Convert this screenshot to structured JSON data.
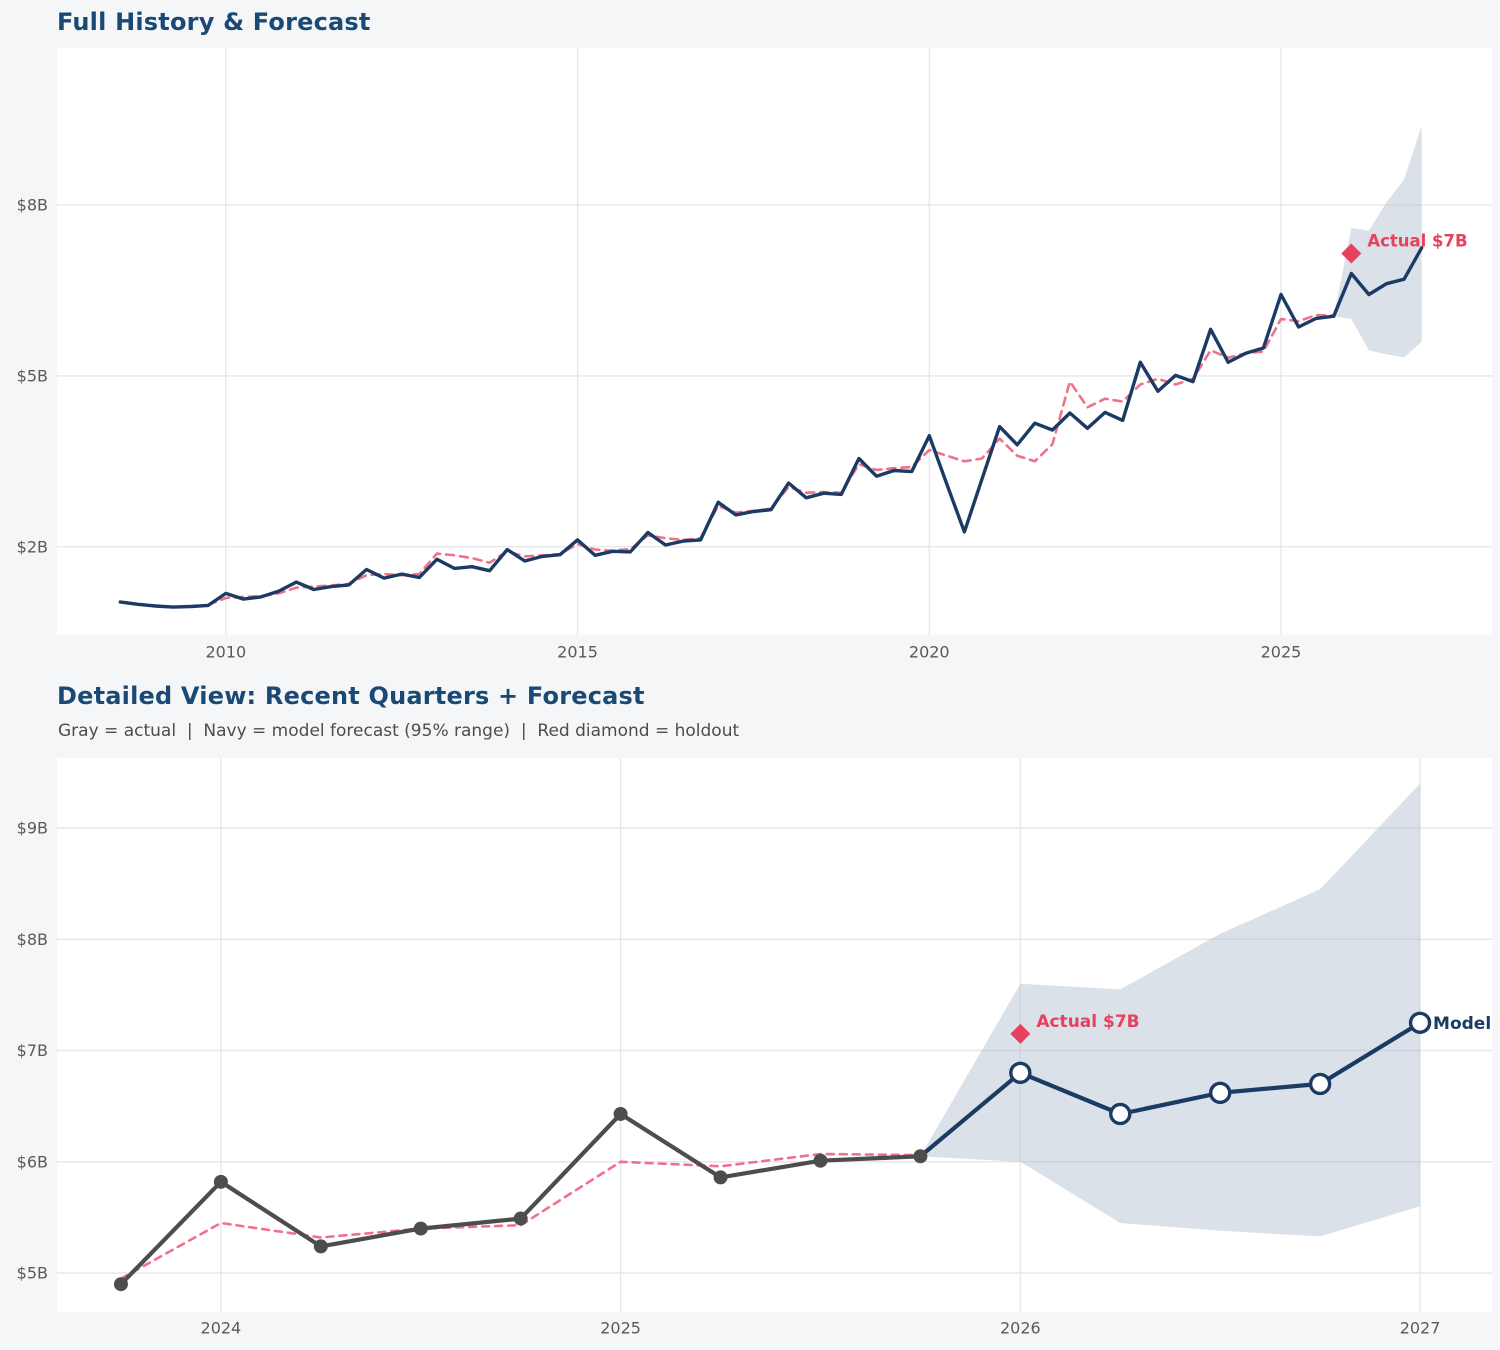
{
  "palette": {
    "page_bg": "#f5f6f8",
    "plot_bg": "#ffffff",
    "grid": "#e4e6e8",
    "navy": "#1b3a64",
    "pink": "#f0718a",
    "crimson": "#e8415f",
    "gray_series": "#4d4d4d",
    "band": "#aebccd",
    "title": "#1b4975",
    "tick": "#5a5a5a",
    "subtitle_text": "#4d4d4d",
    "marker_fill": "#ffffff"
  },
  "chart_data": [
    {
      "type": "line",
      "title": "Full History & Forecast",
      "x_axis": {
        "ticks": [
          2010,
          2015,
          2020,
          2025
        ],
        "tick_labels": [
          "2010",
          "2015",
          "2020",
          "2025"
        ],
        "lim": [
          2007.6,
          2028.0
        ],
        "unit": "year (quarterly points)"
      },
      "y_axis": {
        "ticks": [
          2,
          5,
          8
        ],
        "tick_labels": [
          "$2B",
          "$5B",
          "$8B"
        ],
        "lim": [
          0.45,
          10.76
        ]
      },
      "grid": true,
      "legend": "none",
      "series": [
        {
          "name": "actual-history",
          "color": "navy",
          "style": "solid",
          "marker": "none",
          "x_start": 2008.5,
          "x_step": 0.25,
          "values": [
            1.03,
            0.99,
            0.96,
            0.94,
            0.95,
            0.97,
            1.18,
            1.08,
            1.12,
            1.22,
            1.38,
            1.25,
            1.3,
            1.33,
            1.6,
            1.45,
            1.52,
            1.46,
            1.78,
            1.62,
            1.65,
            1.58,
            1.95,
            1.75,
            1.83,
            1.86,
            2.12,
            1.85,
            1.92,
            1.91,
            2.25,
            2.03,
            2.1,
            2.12,
            2.78,
            2.56,
            2.62,
            2.65,
            3.12,
            2.86,
            2.94,
            2.92,
            3.55,
            3.24,
            3.34,
            3.32,
            3.95,
            3.1,
            2.26,
            3.19,
            4.11,
            3.79,
            4.17,
            4.05,
            4.35,
            4.08,
            4.36,
            4.22,
            5.24,
            4.73,
            5.01,
            4.9,
            5.82,
            5.24,
            5.4,
            5.49,
            6.43,
            5.86,
            6.01,
            6.05
          ]
        },
        {
          "name": "model-fit",
          "color": "pink",
          "style": "dashed",
          "marker": "none",
          "x_start": 2009.75,
          "x_step": 0.25,
          "values": [
            0.98,
            1.1,
            1.12,
            1.13,
            1.18,
            1.28,
            1.3,
            1.32,
            1.35,
            1.5,
            1.52,
            1.5,
            1.52,
            1.88,
            1.85,
            1.8,
            1.72,
            1.92,
            1.83,
            1.85,
            1.87,
            2.05,
            1.95,
            1.93,
            1.96,
            2.2,
            2.15,
            2.12,
            2.15,
            2.72,
            2.6,
            2.63,
            2.67,
            3.05,
            2.95,
            2.96,
            2.95,
            3.45,
            3.35,
            3.38,
            3.4,
            3.7,
            3.6,
            3.5,
            3.55,
            3.9,
            3.6,
            3.5,
            3.8,
            4.9,
            4.45,
            4.6,
            4.55,
            4.85,
            4.95,
            4.85,
            4.95,
            5.45,
            5.32,
            5.4,
            5.43,
            6.0,
            5.96,
            6.07,
            6.06
          ]
        },
        {
          "name": "model-forecast",
          "color": "navy",
          "style": "solid",
          "marker": "none",
          "x_start": 2025.75,
          "x_step": 0.25,
          "values": [
            6.05,
            6.8,
            6.43,
            6.62,
            6.7,
            7.25
          ]
        }
      ],
      "confidence_band": {
        "level": "95%",
        "x_start": 2025.75,
        "x_step": 0.25,
        "upper": [
          6.05,
          7.6,
          7.55,
          8.05,
          8.45,
          9.4
        ],
        "lower": [
          6.05,
          6.0,
          5.45,
          5.38,
          5.33,
          5.6
        ]
      },
      "annotation": {
        "label": "Actual $7B",
        "x": 2026.0,
        "y": 7.15
      }
    },
    {
      "type": "line",
      "title": "Detailed View: Recent Quarters + Forecast",
      "subtitle": "Gray = actual  |  Navy = model forecast (95% range)  |  Red diamond = holdout",
      "x_axis": {
        "ticks": [
          2024,
          2025,
          2026,
          2027
        ],
        "tick_labels": [
          "2024",
          "2025",
          "2026",
          "2027"
        ],
        "lim": [
          2023.59,
          2027.18
        ],
        "unit": "year (quarterly points)"
      },
      "y_axis": {
        "ticks": [
          5,
          6,
          7,
          8,
          9
        ],
        "tick_labels": [
          "$5B",
          "$6B",
          "$7B",
          "$8B",
          "$9B"
        ],
        "lim": [
          4.65,
          9.63
        ]
      },
      "grid": true,
      "legend": "in-subtitle",
      "series": [
        {
          "name": "actual-quarters",
          "color": "gray_series",
          "style": "solid",
          "marker": "filled-circle",
          "x_start": 2023.75,
          "x_step": 0.25,
          "values": [
            4.9,
            5.82,
            5.24,
            5.4,
            5.49,
            6.43,
            5.86,
            6.01,
            6.05
          ]
        },
        {
          "name": "model-fit",
          "color": "pink",
          "style": "dashed",
          "marker": "none",
          "x_start": 2023.75,
          "x_step": 0.25,
          "values": [
            4.95,
            5.45,
            5.32,
            5.4,
            5.43,
            6.0,
            5.96,
            6.07,
            6.06
          ]
        },
        {
          "name": "model-forecast",
          "color": "navy",
          "style": "solid",
          "marker": "open-circle",
          "marker_skip_first": true,
          "x_start": 2025.75,
          "x_step": 0.25,
          "values": [
            6.05,
            6.8,
            6.43,
            6.62,
            6.7,
            7.25
          ]
        }
      ],
      "confidence_band": {
        "level": "95%",
        "x_start": 2025.75,
        "x_step": 0.25,
        "upper": [
          6.05,
          7.6,
          7.55,
          8.05,
          8.45,
          9.4
        ],
        "lower": [
          6.05,
          6.0,
          5.45,
          5.38,
          5.33,
          5.6
        ]
      },
      "annotation": {
        "label": "Actual $7B",
        "x": 2026.0,
        "y": 7.15
      },
      "end_label": {
        "text": "Model",
        "x": 2027.0,
        "y": 7.25
      }
    }
  ]
}
